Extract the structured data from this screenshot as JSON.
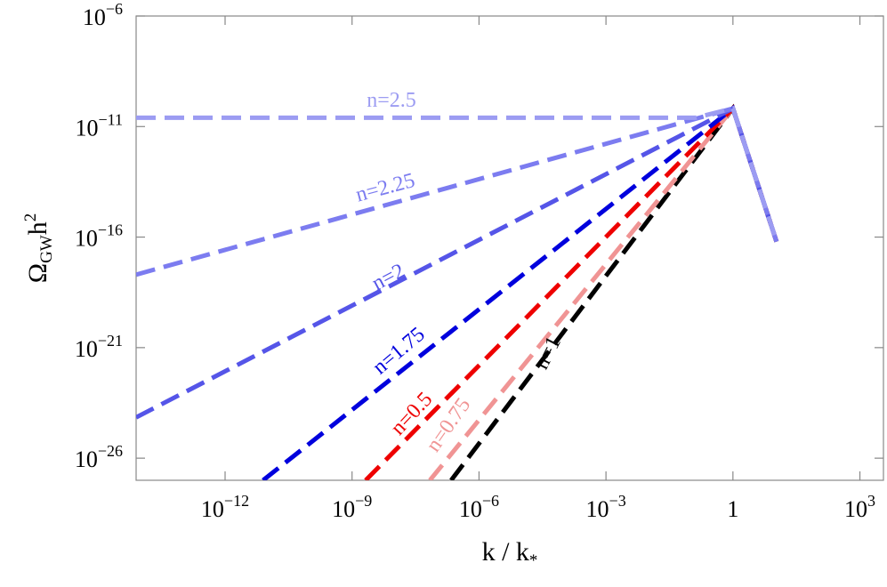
{
  "chart_data": {
    "type": "line",
    "xlabel": [
      "k / k",
      "*"
    ],
    "ylabel": [
      "Ω",
      "GW",
      "h",
      "2"
    ],
    "xscale": "log",
    "yscale": "log",
    "xlim": [
      7.9e-15,
      3600
    ],
    "ylim": [
      1e-27,
      1e-06
    ],
    "xticks": [
      {
        "value": 1e-12,
        "label": "10",
        "exponent": "−12"
      },
      {
        "value": 1e-09,
        "label": "10",
        "exponent": "−9"
      },
      {
        "value": 1e-06,
        "label": "10",
        "exponent": "−6"
      },
      {
        "value": 0.001,
        "label": "10",
        "exponent": "−3"
      },
      1,
      {
        "value": 1000,
        "label": "10",
        "exponent": "3"
      }
    ],
    "yticks": [
      {
        "value": 1e-26,
        "label": "10",
        "exponent": "−26"
      },
      {
        "value": 1e-21,
        "label": "10",
        "exponent": "−21"
      },
      {
        "value": 1e-16,
        "label": "10",
        "exponent": "−16"
      },
      {
        "value": 1e-11,
        "label": "10",
        "exponent": "−11"
      },
      {
        "value": 1e-06,
        "label": "10",
        "exponent": "−6"
      }
    ],
    "series": [
      {
        "name": "n=1",
        "color": "#000000",
        "x": [
          2.2e-07,
          1,
          10.7
        ],
        "values": [
          1e-27,
          6.6e-11,
          6.3e-17
        ]
      },
      {
        "name": "n=0.75",
        "color": "#f09494",
        "x": [
          6.9e-08,
          1,
          10.7
        ],
        "values": [
          1e-27,
          6.6e-11,
          6.3e-17
        ]
      },
      {
        "name": "n=0.5",
        "color": "#ee0000",
        "x": [
          2.1e-09,
          1,
          10.7
        ],
        "values": [
          1e-27,
          6.6e-11,
          6.3e-17
        ]
      },
      {
        "name": "n=1.75",
        "color": "#0000dd",
        "x": [
          7.9e-12,
          1,
          10.7
        ],
        "values": [
          1e-27,
          6.6e-11,
          6.3e-17
        ]
      },
      {
        "name": "n=2",
        "color": "#5555e8",
        "x": [
          7.9e-15,
          1,
          10.7
        ],
        "values": [
          7e-25,
          6.6e-11,
          6.3e-17
        ]
      },
      {
        "name": "n=2.25",
        "color": "#7c7cf0",
        "x": [
          7.9e-15,
          1,
          10.7
        ],
        "values": [
          2e-18,
          6.6e-11,
          6.3e-17
        ]
      },
      {
        "name": "n=2.5",
        "color": "#9c9cf2",
        "x": [
          7.9e-15,
          0.13,
          1,
          10.7
        ],
        "values": [
          2.5e-11,
          2.5e-11,
          6.6e-11,
          6.3e-17
        ]
      }
    ]
  }
}
